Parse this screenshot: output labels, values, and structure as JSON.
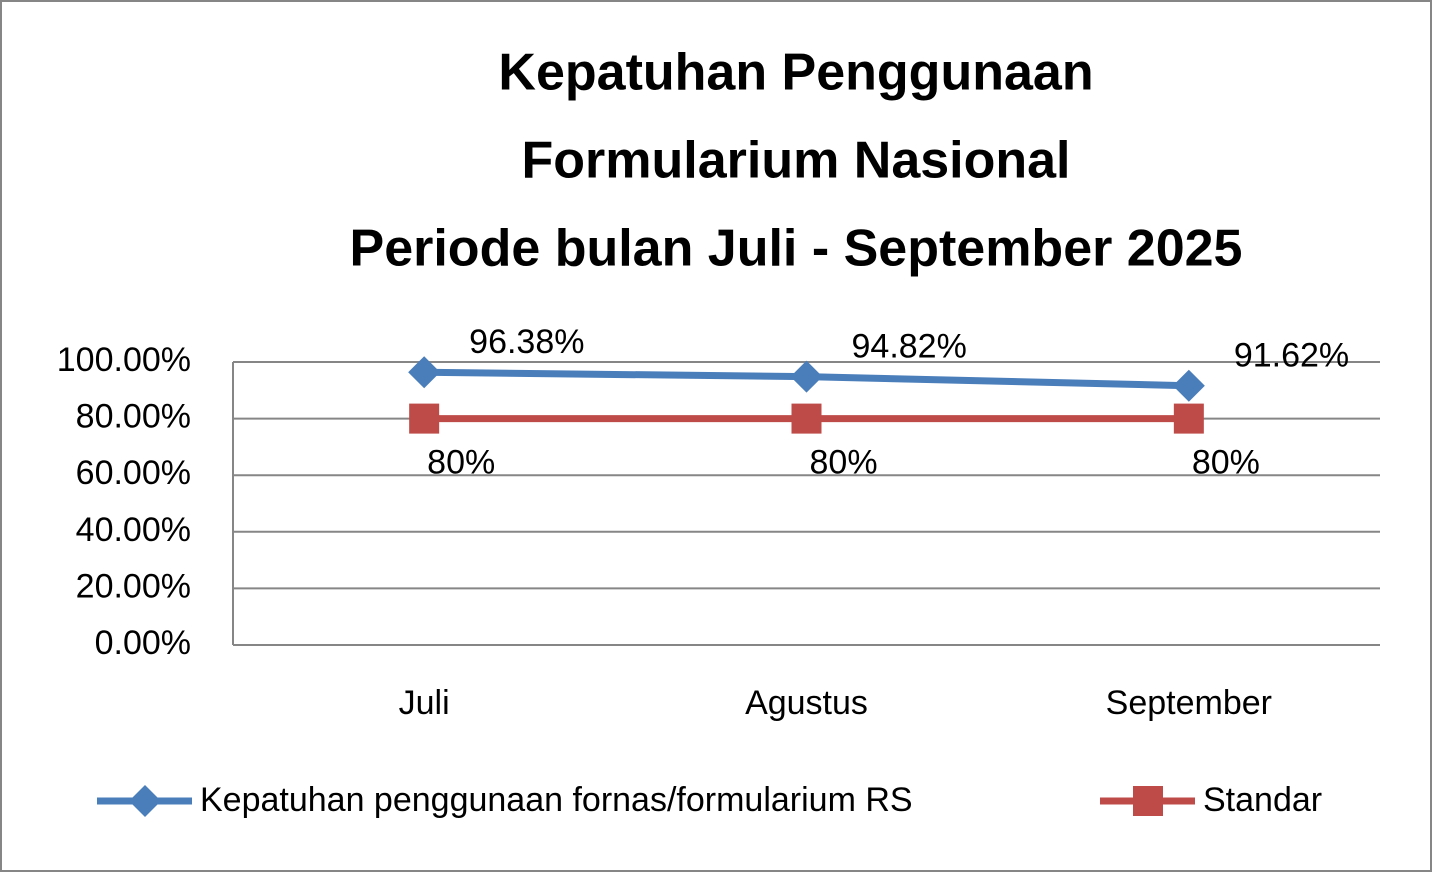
{
  "chart_data": {
    "type": "line",
    "title": [
      "Kepatuhan Penggunaan",
      "Formularium Nasional",
      "Periode bulan Juli - September 2025"
    ],
    "categories": [
      "Juli",
      "Agustus",
      "September"
    ],
    "series": [
      {
        "name": "Kepatuhan penggunaan fornas/formularium RS",
        "color": "#4a7ebb",
        "marker": "diamond",
        "values": [
          96.38,
          94.82,
          91.62
        ],
        "value_labels": [
          "96.38%",
          "94.82%",
          "91.62%"
        ]
      },
      {
        "name": "Standar",
        "color": "#be4b48",
        "marker": "square",
        "values": [
          80,
          80,
          80
        ],
        "value_labels": [
          "80%",
          "80%",
          "80%"
        ]
      }
    ],
    "ylim": [
      0,
      100
    ],
    "yticks": [
      {
        "value": 0,
        "label": "0.00%"
      },
      {
        "value": 20,
        "label": "20.00%"
      },
      {
        "value": 40,
        "label": "40.00%"
      },
      {
        "value": 60,
        "label": "60.00%"
      },
      {
        "value": 80,
        "label": "80.00%"
      },
      {
        "value": 100,
        "label": "100.00%"
      }
    ],
    "grid": true,
    "legend": "bottom"
  }
}
